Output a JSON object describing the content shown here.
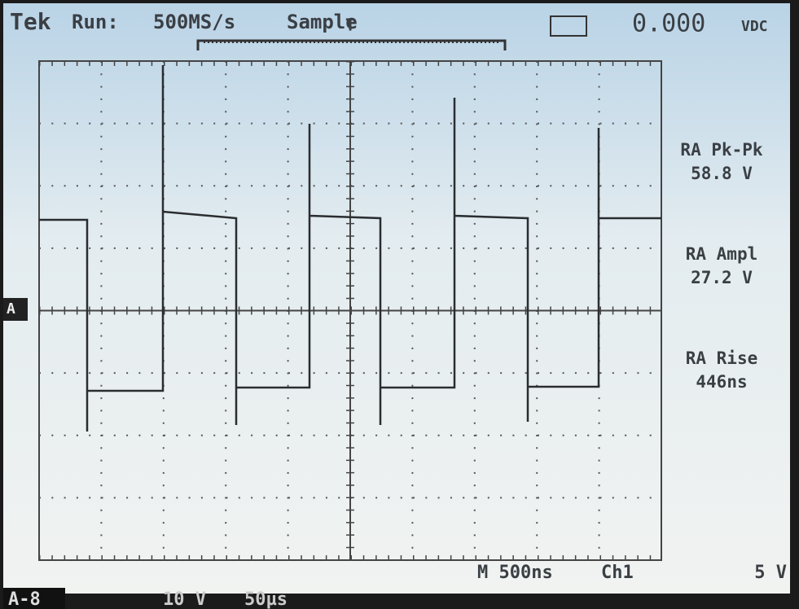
{
  "header": {
    "brand": "Tek",
    "status": "Run:",
    "rate": "500MS/s",
    "mode": "Sample",
    "reading": "0.000",
    "reading_unit": "VDC"
  },
  "markers": {
    "channel": "A",
    "trigger": "T"
  },
  "measurements": [
    {
      "label": "RA Pk-Pk",
      "value": "58.8 V"
    },
    {
      "label": "RA Ampl",
      "value": "27.2 V"
    },
    {
      "label": "RA Rise",
      "value": "446ns"
    }
  ],
  "footer": {
    "channel": "A-8",
    "scale": "10 V",
    "time": "50µs",
    "timebase": "M 500ns",
    "trigger_source": "Ch1",
    "trigger_level": "5 V"
  }
}
